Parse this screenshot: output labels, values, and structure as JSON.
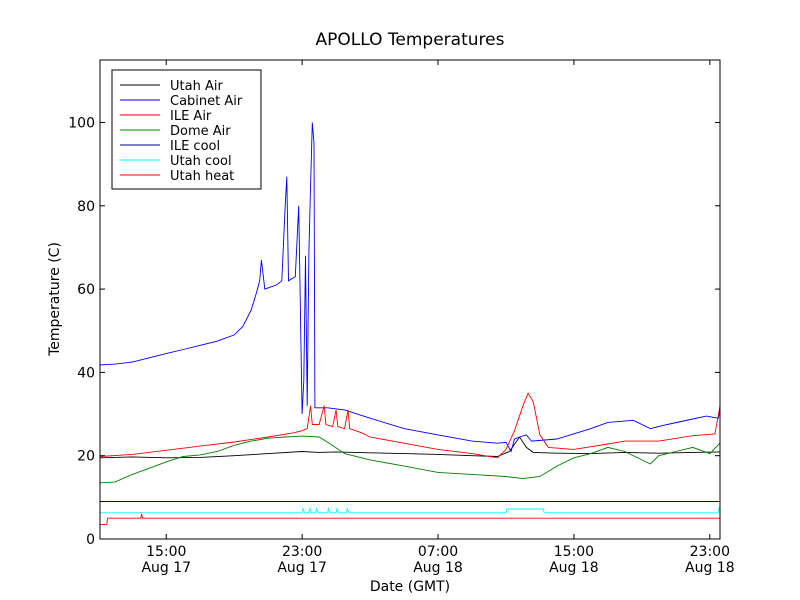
{
  "chart_data": {
    "type": "line",
    "title": "APOLLO Temperatures",
    "xlabel": "Date (GMT)",
    "ylabel": "Temperature (C)",
    "xlim": [
      11.1,
      47.6
    ],
    "ylim": [
      0,
      115
    ],
    "grid": false,
    "legend_position": "top-left",
    "x_unit": "hours since Aug 17 00:00 GMT",
    "xticks": [
      {
        "value": 15,
        "line1": "15:00",
        "line2": "Aug 17"
      },
      {
        "value": 23,
        "line1": "23:00",
        "line2": "Aug 17"
      },
      {
        "value": 31,
        "line1": "07:00",
        "line2": "Aug 18"
      },
      {
        "value": 39,
        "line1": "15:00",
        "line2": "Aug 18"
      },
      {
        "value": 47,
        "line1": "23:00",
        "line2": "Aug 18"
      }
    ],
    "yticks": [
      0,
      20,
      40,
      60,
      80,
      100
    ],
    "series": [
      {
        "name": "Utah Air",
        "color": "#000000",
        "points": [
          [
            11.1,
            19.5
          ],
          [
            13,
            19.7
          ],
          [
            15,
            19.5
          ],
          [
            17,
            19.6
          ],
          [
            19,
            20.0
          ],
          [
            21,
            20.5
          ],
          [
            23,
            21.0
          ],
          [
            24,
            20.8
          ],
          [
            25,
            20.9
          ],
          [
            27,
            20.7
          ],
          [
            29,
            20.5
          ],
          [
            31,
            20.3
          ],
          [
            33,
            20.0
          ],
          [
            34.5,
            19.8
          ],
          [
            35.2,
            21.0
          ],
          [
            35.8,
            24.5
          ],
          [
            36.2,
            22.0
          ],
          [
            36.6,
            20.8
          ],
          [
            38,
            20.6
          ],
          [
            40,
            20.5
          ],
          [
            42,
            20.8
          ],
          [
            44,
            20.6
          ],
          [
            46,
            20.8
          ],
          [
            47.6,
            20.9
          ]
        ]
      },
      {
        "name": "Cabinet Air",
        "color": "#0000ff",
        "points": [
          [
            11.1,
            41.8
          ],
          [
            12,
            42.0
          ],
          [
            13,
            42.5
          ],
          [
            14,
            43.5
          ],
          [
            15,
            44.5
          ],
          [
            16,
            45.5
          ],
          [
            17,
            46.5
          ],
          [
            18,
            47.5
          ],
          [
            19,
            49.0
          ],
          [
            19.5,
            51.0
          ],
          [
            20,
            55.0
          ],
          [
            20.3,
            59.0
          ],
          [
            20.5,
            62.0
          ],
          [
            20.6,
            67.0
          ],
          [
            20.8,
            60.0
          ],
          [
            21.5,
            61.0
          ],
          [
            21.8,
            62.0
          ],
          [
            22,
            80.0
          ],
          [
            22.1,
            87.0
          ],
          [
            22.2,
            62.0
          ],
          [
            22.6,
            63.0
          ],
          [
            22.8,
            80.0
          ],
          [
            23,
            30.0
          ],
          [
            23.1,
            38.0
          ],
          [
            23.2,
            68.0
          ],
          [
            23.3,
            32.0
          ],
          [
            23.4,
            69.0
          ],
          [
            23.5,
            85.0
          ],
          [
            23.6,
            100.0
          ],
          [
            23.7,
            95.0
          ],
          [
            23.75,
            31.5
          ],
          [
            24.5,
            31.5
          ],
          [
            25.5,
            31.0
          ],
          [
            27,
            29.0
          ],
          [
            29,
            26.5
          ],
          [
            31,
            25.0
          ],
          [
            33,
            23.5
          ],
          [
            34.5,
            23.0
          ],
          [
            35.0,
            23.2
          ],
          [
            35.3,
            21.0
          ],
          [
            35.5,
            24.0
          ],
          [
            35.8,
            24.5
          ],
          [
            36.2,
            25.0
          ],
          [
            36.5,
            23.5
          ],
          [
            38,
            24.0
          ],
          [
            40,
            26.5
          ],
          [
            41,
            28.0
          ],
          [
            42.5,
            28.5
          ],
          [
            43.5,
            26.5
          ],
          [
            44.5,
            27.5
          ],
          [
            46,
            28.8
          ],
          [
            46.8,
            29.5
          ],
          [
            47.5,
            29.0
          ],
          [
            47.6,
            31.0
          ]
        ]
      },
      {
        "name": "ILE Air",
        "color": "#ff0000",
        "points": [
          [
            11.1,
            19.8
          ],
          [
            13,
            20.3
          ],
          [
            15,
            21.3
          ],
          [
            17,
            22.3
          ],
          [
            19,
            23.3
          ],
          [
            21,
            24.5
          ],
          [
            22.5,
            25.5
          ],
          [
            23,
            26.0
          ],
          [
            23.3,
            26.5
          ],
          [
            23.5,
            32.0
          ],
          [
            23.6,
            27.5
          ],
          [
            24,
            27.5
          ],
          [
            24.3,
            32.0
          ],
          [
            24.4,
            27.5
          ],
          [
            24.8,
            27.0
          ],
          [
            25,
            31.0
          ],
          [
            25.1,
            27.0
          ],
          [
            25.5,
            26.5
          ],
          [
            25.7,
            31.0
          ],
          [
            25.8,
            26.5
          ],
          [
            26.5,
            25.5
          ],
          [
            27,
            24.5
          ],
          [
            29,
            23.0
          ],
          [
            31,
            21.5
          ],
          [
            33,
            20.5
          ],
          [
            34.5,
            19.5
          ],
          [
            35,
            21.5
          ],
          [
            35.5,
            26.0
          ],
          [
            36,
            32.0
          ],
          [
            36.3,
            35.0
          ],
          [
            36.6,
            33.0
          ],
          [
            37,
            25.0
          ],
          [
            37.5,
            22.0
          ],
          [
            39,
            21.5
          ],
          [
            41,
            22.8
          ],
          [
            42,
            23.5
          ],
          [
            44,
            23.5
          ],
          [
            46,
            24.8
          ],
          [
            47.3,
            25.2
          ],
          [
            47.6,
            32.0
          ]
        ]
      },
      {
        "name": "Dome Air",
        "color": "#008000",
        "points": [
          [
            11.1,
            13.5
          ],
          [
            12,
            13.7
          ],
          [
            13,
            15.5
          ],
          [
            14,
            17.0
          ],
          [
            15,
            18.5
          ],
          [
            16,
            19.8
          ],
          [
            17,
            20.2
          ],
          [
            18,
            21.0
          ],
          [
            19,
            22.5
          ],
          [
            20,
            23.5
          ],
          [
            21,
            24.2
          ],
          [
            22,
            24.5
          ],
          [
            23,
            24.7
          ],
          [
            24,
            24.5
          ],
          [
            24.6,
            23.0
          ],
          [
            25.5,
            20.5
          ],
          [
            27,
            19.0
          ],
          [
            29,
            17.5
          ],
          [
            31,
            16.0
          ],
          [
            33,
            15.5
          ],
          [
            35,
            15.0
          ],
          [
            36,
            14.5
          ],
          [
            37,
            15.0
          ],
          [
            38,
            17.5
          ],
          [
            39,
            19.5
          ],
          [
            40,
            20.5
          ],
          [
            41,
            22.0
          ],
          [
            42,
            21.0
          ],
          [
            43,
            19.0
          ],
          [
            43.5,
            18.0
          ],
          [
            44,
            20.0
          ],
          [
            45,
            21.0
          ],
          [
            46,
            22.0
          ],
          [
            47,
            20.5
          ],
          [
            47.6,
            23.0
          ]
        ]
      },
      {
        "name": "ILE cool",
        "color": "#000080",
        "points": [
          [
            11.1,
            9.0
          ],
          [
            47.6,
            9.0
          ]
        ]
      },
      {
        "name": "Utah cool",
        "color": "#00ffff",
        "points": [
          [
            11.1,
            6.3
          ],
          [
            23,
            6.3
          ],
          [
            23.05,
            7.3
          ],
          [
            23.15,
            6.3
          ],
          [
            23.4,
            6.3
          ],
          [
            23.45,
            7.3
          ],
          [
            23.55,
            6.3
          ],
          [
            23.8,
            6.3
          ],
          [
            23.85,
            7.3
          ],
          [
            23.95,
            6.3
          ],
          [
            24.5,
            6.3
          ],
          [
            24.55,
            7.3
          ],
          [
            24.65,
            6.3
          ],
          [
            25,
            6.3
          ],
          [
            25.05,
            7.3
          ],
          [
            25.15,
            6.3
          ],
          [
            25.6,
            6.3
          ],
          [
            25.65,
            7.3
          ],
          [
            25.75,
            6.3
          ],
          [
            35,
            6.3
          ],
          [
            35.05,
            7.2
          ],
          [
            37.2,
            7.2
          ],
          [
            37.25,
            6.3
          ],
          [
            47.5,
            6.3
          ],
          [
            47.55,
            7.5
          ],
          [
            47.6,
            7.5
          ]
        ]
      },
      {
        "name": "Utah heat",
        "color": "#ff0000",
        "points": [
          [
            11.1,
            3.5
          ],
          [
            11.5,
            3.5
          ],
          [
            11.55,
            5.0
          ],
          [
            13.5,
            5.0
          ],
          [
            13.55,
            6.0
          ],
          [
            13.6,
            5.0
          ],
          [
            47.6,
            5.0
          ]
        ]
      }
    ]
  }
}
